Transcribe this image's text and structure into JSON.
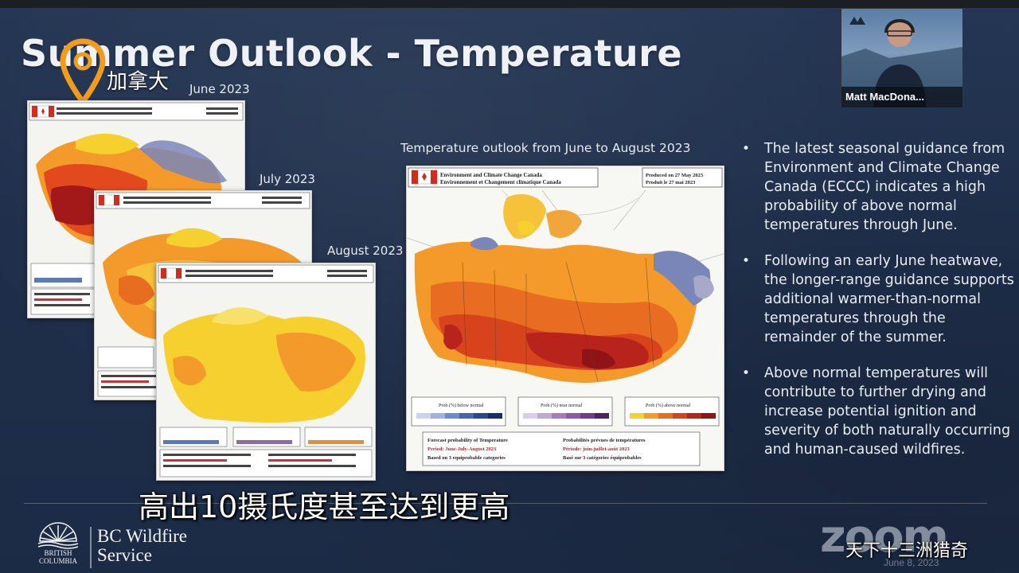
{
  "slide": {
    "title": "Summer Outlook - Temperature",
    "location_tag": "加拿大",
    "maps": [
      {
        "label": "June 2023",
        "header_line1": "Environment and Climate Change Canada",
        "header_line2": "Environnement et Changement climatique Canada"
      },
      {
        "label": "July 2023"
      },
      {
        "label": "August 2023"
      }
    ],
    "main_map": {
      "label": "Temperature outlook from June to August 2023",
      "header_line1": "Environment and Climate Change Canada",
      "header_line2": "Environnement et Changement climatique Canada",
      "produced_en": "Produced on 27 May 2023",
      "produced_fr": "Produit le 27 mai 2023",
      "legend_below": "Prob (%) below normal",
      "legend_normal": "Prob (%) near normal",
      "legend_above": "Prob (%) above normal",
      "footer_left_1": "Forecast probability of Temperature",
      "footer_left_2": "Period: June-July-August 2023",
      "footer_left_3": "Based on 3 equiprobable categories",
      "footer_right_1": "Probabilités prévues de températures",
      "footer_right_2": "Période: juin-juillet-août 2023",
      "footer_right_3": "Basé sur 3 catégories équiprobables"
    },
    "bullets": [
      "The latest seasonal guidance from Environment and Climate Change Canada (ECCC) indicates a high probability of above normal temperatures through June.",
      "Following an early June heatwave, the longer-range guidance supports  additional warmer-than-normal temperatures through the remainder of the summer.",
      "Above normal temperatures will contribute to further drying and increase potential ignition and severity of both naturally occurring and human-caused wildfires."
    ],
    "bullet_symbol": "•",
    "subtitle_caption": "高出10摄氏度甚至达到更高",
    "logo": {
      "org_line1": "BC Wildfire",
      "org_line2": "Service",
      "province": "BRITISH COLUMBIA"
    }
  },
  "zoom": {
    "watermark": "zoom",
    "date_fragment": "June 8, 2023"
  },
  "video": {
    "participant_name": "Matt MacDona..."
  },
  "channel_watermark": "天下十三洲猎奇",
  "colors": {
    "slide_bg": "#1f2f4b",
    "hot_dark": "#a3191a",
    "hot": "#e24a1e",
    "warm": "#f39a2b",
    "mild": "#f6d02f",
    "cool": "#7b86b8",
    "flag_red": "#d52b1e"
  },
  "icons": [
    "location-pin-icon",
    "canada-flag-icon",
    "bc-sun-logo-icon"
  ]
}
